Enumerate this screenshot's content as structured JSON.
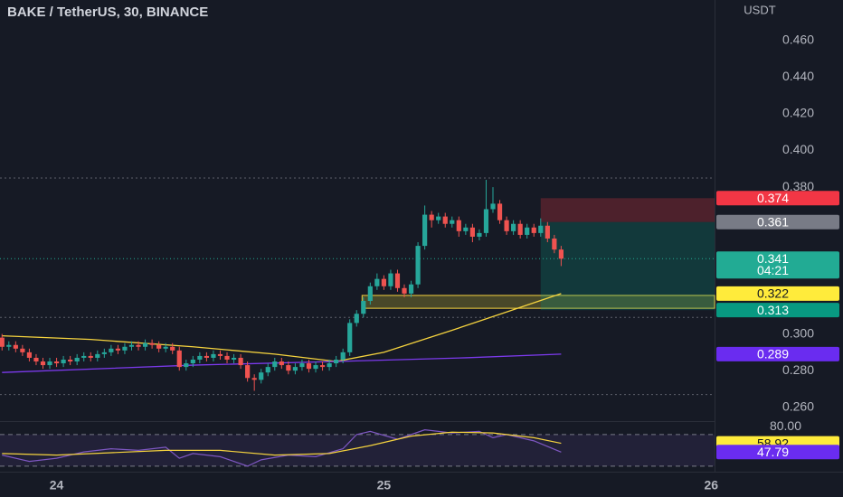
{
  "chart_data": {
    "type": "candlestick",
    "title": "BAKE / TetherUS, 30, BINANCE",
    "unit": "USDT",
    "countdown": "04:21",
    "up_color": "#26a69a",
    "down_color": "#ef5350",
    "x": [
      -8,
      -7,
      -6,
      -5,
      -4,
      -3,
      -2,
      -1,
      0,
      1,
      2,
      3,
      4,
      5,
      6,
      7,
      8,
      9,
      10,
      11,
      12,
      13,
      14,
      15,
      16,
      17,
      18,
      19,
      20,
      21,
      22,
      23,
      24,
      25,
      26,
      27,
      28,
      29,
      30,
      31,
      32,
      33,
      34,
      35,
      36,
      37,
      38,
      39,
      40,
      41,
      42,
      43,
      44,
      45,
      46,
      47,
      48,
      49,
      50,
      51,
      52,
      53,
      54,
      55,
      56,
      57,
      58,
      59,
      60,
      61,
      62,
      63,
      64,
      65,
      66,
      67,
      68,
      69,
      70,
      71,
      72,
      73,
      74
    ],
    "open": [
      0.298,
      0.293,
      0.294,
      0.292,
      0.29,
      0.287,
      0.285,
      0.283,
      0.285,
      0.284,
      0.286,
      0.285,
      0.287,
      0.288,
      0.287,
      0.289,
      0.29,
      0.292,
      0.291,
      0.293,
      0.294,
      0.293,
      0.295,
      0.294,
      0.292,
      0.293,
      0.291,
      0.282,
      0.284,
      0.286,
      0.288,
      0.287,
      0.289,
      0.288,
      0.286,
      0.287,
      0.283,
      0.276,
      0.275,
      0.279,
      0.282,
      0.285,
      0.283,
      0.28,
      0.282,
      0.284,
      0.281,
      0.283,
      0.282,
      0.284,
      0.286,
      0.29,
      0.306,
      0.311,
      0.318,
      0.326,
      0.33,
      0.326,
      0.333,
      0.325,
      0.322,
      0.327,
      0.348,
      0.365,
      0.362,
      0.364,
      0.36,
      0.362,
      0.356,
      0.358,
      0.353,
      0.355,
      0.368,
      0.371,
      0.362,
      0.356,
      0.36,
      0.354,
      0.358,
      0.355,
      0.359,
      0.352,
      0.346
    ],
    "high": [
      0.3,
      0.296,
      0.296,
      0.294,
      0.292,
      0.289,
      0.287,
      0.287,
      0.287,
      0.288,
      0.288,
      0.289,
      0.29,
      0.29,
      0.291,
      0.292,
      0.294,
      0.294,
      0.295,
      0.296,
      0.296,
      0.297,
      0.297,
      0.296,
      0.295,
      0.295,
      0.293,
      0.286,
      0.288,
      0.29,
      0.29,
      0.291,
      0.291,
      0.29,
      0.289,
      0.289,
      0.285,
      0.278,
      0.281,
      0.284,
      0.287,
      0.287,
      0.285,
      0.284,
      0.286,
      0.286,
      0.285,
      0.285,
      0.286,
      0.288,
      0.292,
      0.308,
      0.313,
      0.32,
      0.328,
      0.333,
      0.332,
      0.335,
      0.335,
      0.327,
      0.329,
      0.35,
      0.37,
      0.367,
      0.366,
      0.366,
      0.364,
      0.364,
      0.36,
      0.36,
      0.357,
      0.384,
      0.38,
      0.373,
      0.364,
      0.362,
      0.362,
      0.36,
      0.36,
      0.363,
      0.361,
      0.354,
      0.348
    ],
    "low": [
      0.291,
      0.291,
      0.29,
      0.288,
      0.285,
      0.283,
      0.281,
      0.281,
      0.282,
      0.282,
      0.283,
      0.283,
      0.285,
      0.285,
      0.285,
      0.287,
      0.288,
      0.289,
      0.289,
      0.291,
      0.291,
      0.291,
      0.292,
      0.29,
      0.29,
      0.289,
      0.28,
      0.28,
      0.282,
      0.284,
      0.285,
      0.285,
      0.286,
      0.284,
      0.284,
      0.281,
      0.274,
      0.269,
      0.273,
      0.277,
      0.28,
      0.281,
      0.278,
      0.278,
      0.28,
      0.279,
      0.279,
      0.28,
      0.28,
      0.282,
      0.284,
      0.288,
      0.304,
      0.309,
      0.316,
      0.324,
      0.324,
      0.324,
      0.323,
      0.32,
      0.32,
      0.325,
      0.346,
      0.358,
      0.36,
      0.358,
      0.358,
      0.353,
      0.354,
      0.35,
      0.351,
      0.353,
      0.366,
      0.36,
      0.354,
      0.354,
      0.352,
      0.352,
      0.353,
      0.353,
      0.35,
      0.344,
      0.337
    ],
    "close": [
      0.293,
      0.294,
      0.292,
      0.29,
      0.287,
      0.285,
      0.283,
      0.285,
      0.284,
      0.286,
      0.285,
      0.287,
      0.288,
      0.287,
      0.289,
      0.29,
      0.292,
      0.291,
      0.293,
      0.294,
      0.293,
      0.295,
      0.294,
      0.292,
      0.293,
      0.291,
      0.282,
      0.284,
      0.286,
      0.288,
      0.287,
      0.289,
      0.288,
      0.286,
      0.287,
      0.283,
      0.276,
      0.275,
      0.279,
      0.282,
      0.285,
      0.283,
      0.28,
      0.282,
      0.284,
      0.281,
      0.283,
      0.282,
      0.284,
      0.286,
      0.29,
      0.306,
      0.311,
      0.318,
      0.326,
      0.33,
      0.326,
      0.333,
      0.325,
      0.322,
      0.327,
      0.348,
      0.365,
      0.362,
      0.364,
      0.36,
      0.362,
      0.356,
      0.358,
      0.353,
      0.355,
      0.368,
      0.371,
      0.362,
      0.356,
      0.36,
      0.354,
      0.358,
      0.355,
      0.359,
      0.352,
      0.346,
      0.341
    ],
    "xlim": [
      -8.3,
      96.5
    ],
    "xticks": [
      {
        "value": 0,
        "label": "24"
      },
      {
        "value": 48,
        "label": "25"
      },
      {
        "value": 96,
        "label": "26"
      }
    ],
    "ylim": [
      0.253,
      0.482
    ],
    "yticks": [
      {
        "value": 0.26,
        "label": "0.260"
      },
      {
        "value": 0.28,
        "label": "0.280"
      },
      {
        "value": 0.3,
        "label": "0.300"
      },
      {
        "value": 0.38,
        "label": "0.380"
      },
      {
        "value": 0.4,
        "label": "0.400"
      },
      {
        "value": 0.42,
        "label": "0.420"
      },
      {
        "value": 0.44,
        "label": "0.440"
      },
      {
        "value": 0.46,
        "label": "0.460"
      }
    ],
    "overlays": [
      {
        "color": "#f5d33e",
        "x": [
          -8,
          5,
          20,
          32,
          41,
          48,
          58,
          66,
          74
        ],
        "values": [
          0.299,
          0.297,
          0.293,
          0.289,
          0.285,
          0.29,
          0.302,
          0.312,
          0.322
        ]
      },
      {
        "color": "#7c3aed",
        "x": [
          -8,
          20,
          41,
          60,
          74
        ],
        "values": [
          0.279,
          0.283,
          0.285,
          0.287,
          0.289
        ]
      }
    ],
    "levels": [
      0.385,
      0.309,
      0.267
    ],
    "zone": {
      "start_x": 44.8,
      "top": 0.321,
      "bottom": 0.314
    },
    "position": {
      "start_x": 71,
      "stop": 0.374,
      "entry": 0.361,
      "target": 0.313
    },
    "rsi": {
      "ylim": [
        23,
        87
      ],
      "yticks": [
        {
          "value": 80,
          "label": "80.00"
        }
      ],
      "bands": [
        70,
        30
      ],
      "series": [
        {
          "color": "#7e57c2",
          "x": [
            -8,
            -4,
            0,
            4,
            8,
            12,
            16,
            18,
            20,
            24,
            28,
            30,
            34,
            38,
            42,
            44,
            46,
            50,
            54,
            58,
            62,
            64,
            66,
            70,
            74
          ],
          "values": [
            44,
            36,
            40,
            48,
            52,
            50,
            54,
            40,
            46,
            42,
            30,
            38,
            44,
            42,
            52,
            70,
            74,
            64,
            76,
            72,
            74,
            66,
            70,
            62,
            47.79
          ]
        },
        {
          "color": "#f5d33e",
          "x": [
            -8,
            0,
            8,
            16,
            24,
            32,
            40,
            46,
            52,
            58,
            64,
            70,
            74
          ],
          "values": [
            46,
            44,
            47,
            50,
            50,
            44,
            46,
            56,
            68,
            73,
            72,
            66,
            58.92
          ]
        }
      ]
    }
  }
}
